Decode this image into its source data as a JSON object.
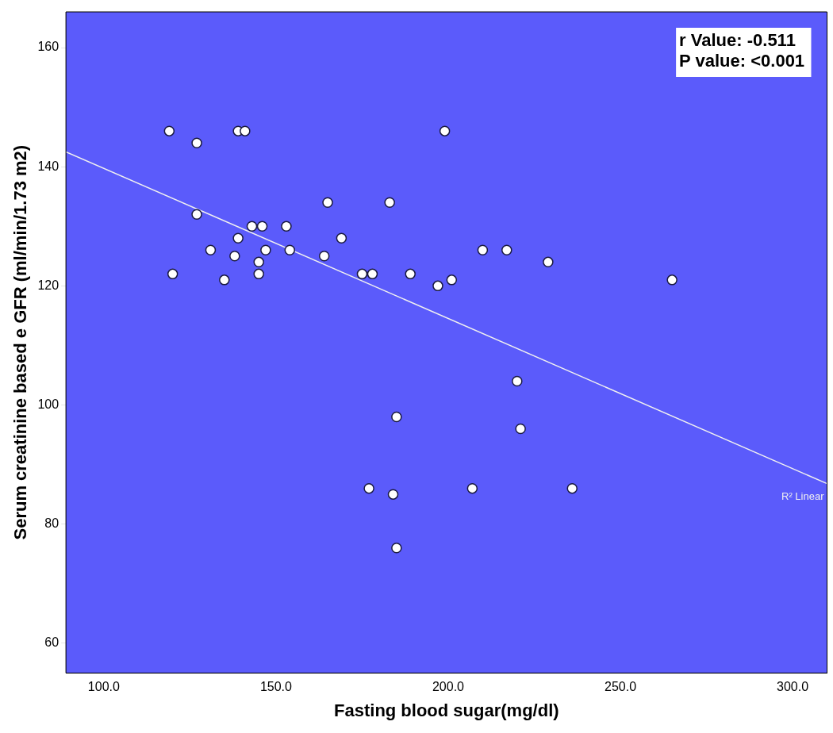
{
  "chart_data": {
    "type": "scatter",
    "xlabel": "Fasting blood sugar(mg/dl)",
    "ylabel": "Serum creatinine based e GFR (ml/min/1.73 m2)",
    "xlim": [
      89,
      310
    ],
    "xticks": [
      {
        "value": 100,
        "label": "100.0"
      },
      {
        "value": 150,
        "label": "150.0"
      },
      {
        "value": 200,
        "label": "200.0"
      },
      {
        "value": 250,
        "label": "250.0"
      },
      {
        "value": 300,
        "label": "300.0"
      }
    ],
    "ylim": [
      55,
      166
    ],
    "yticks": [
      60,
      80,
      100,
      120,
      140,
      160
    ],
    "grid": false,
    "legend": false,
    "marker": "circle",
    "series": [
      {
        "color": "#ffffff",
        "x": [
          119,
          127,
          139,
          141,
          199,
          127,
          165,
          183,
          143,
          146,
          153,
          139,
          169,
          131,
          147,
          154,
          210,
          217,
          138,
          164,
          145,
          229,
          120,
          145,
          175,
          178,
          189,
          135,
          201,
          265,
          197,
          220,
          185,
          221,
          177,
          184,
          207,
          236,
          185
        ],
        "values": [
          146,
          144,
          146,
          146,
          146,
          132,
          134,
          134,
          130,
          130,
          130,
          128,
          128,
          126,
          126,
          126,
          126,
          126,
          125,
          125,
          124,
          124,
          122,
          122,
          122,
          122,
          122,
          121,
          121,
          121,
          120,
          104,
          98,
          96,
          86,
          85,
          86,
          86,
          76
        ]
      },
      {
        "type": "line",
        "color": "#f0f0f0",
        "marker": "none",
        "x": [
          89,
          310
        ],
        "values": [
          142.5,
          86.8
        ]
      }
    ],
    "annotations": [
      "r Value: -0.511",
      "P value: <0.001",
      "R² Linear"
    ]
  }
}
